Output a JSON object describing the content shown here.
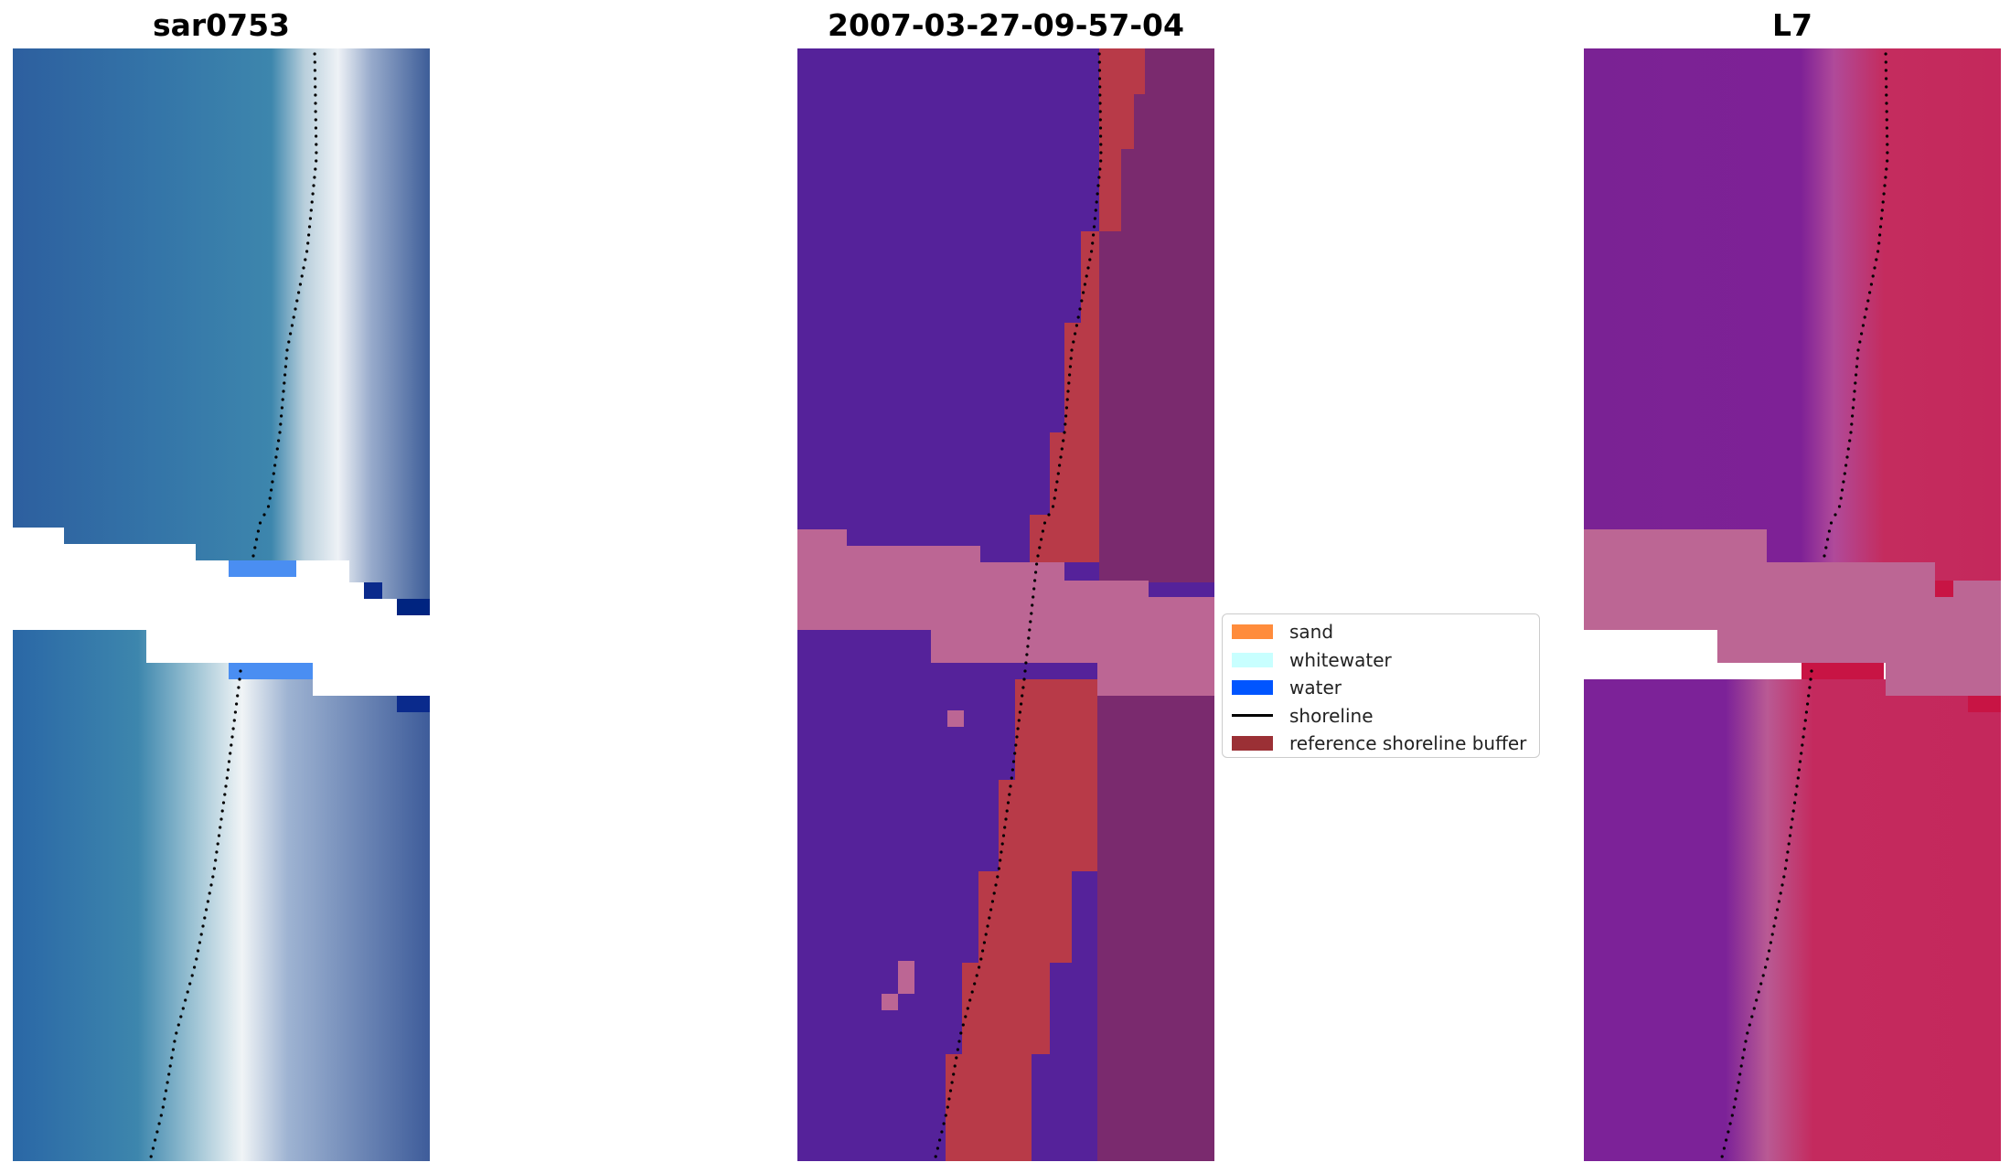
{
  "panels": [
    {
      "id": "rgb",
      "title": "sar0753"
    },
    {
      "id": "classified",
      "title": "2007-03-27-09-57-04"
    },
    {
      "id": "index",
      "title": "L7"
    }
  ],
  "legend": {
    "items": [
      {
        "label": "sand",
        "kind": "patch",
        "color": "#ff8c3c"
      },
      {
        "label": "whitewater",
        "kind": "patch",
        "color": "#c8ffff"
      },
      {
        "label": "water",
        "kind": "patch",
        "color": "#0055ff"
      },
      {
        "label": "shoreline",
        "kind": "line",
        "color": "#000000"
      },
      {
        "label": "reference shoreline buffer",
        "kind": "patch",
        "color": "#9b3035"
      }
    ]
  },
  "colors": {
    "rgb_water": "#2f6ea8",
    "rgb_surf": "#e6eef6",
    "classified_water": "#55229a",
    "classified_buffer": "#b83a48",
    "classified_land": "#7a2a6e",
    "nodata": "#bc6694",
    "index_water": "#7c1f98",
    "index_land": "#c4245c"
  }
}
